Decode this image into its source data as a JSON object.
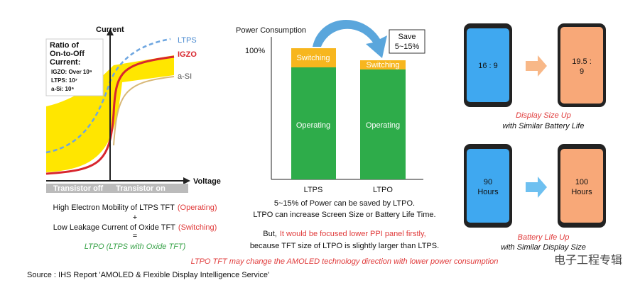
{
  "left_panel": {
    "y_axis_label": "Current",
    "x_axis_label": "Voltage",
    "curve_labels": {
      "ltps": "LTPS",
      "igzo": "IGZO",
      "asi": "a-SI"
    },
    "ratio_box": {
      "title": [
        "Ratio of",
        "On-to-Off",
        "Current:"
      ],
      "rows": [
        "IGZO: Over 10⁹",
        "LTPS: 10⁷",
        "a-Si: 10⁶"
      ]
    },
    "regions": [
      "Transistor off",
      "Transistor on"
    ],
    "caption": [
      [
        "High Electron Mobility of LTPS TFT",
        "(Operating)"
      ],
      "+",
      [
        "Low Leakage Current of Oxide TFT",
        "(Switching)"
      ],
      "=",
      "LTPO (LTPS with Oxide TFT)"
    ]
  },
  "middle_panel": {
    "y_axis_label": "Power Consumption",
    "y_tick": "100%",
    "bars": [
      {
        "name": "LTPS",
        "segments": [
          "Switching",
          "Operating"
        ]
      },
      {
        "name": "LTPO",
        "segments": [
          "Switching",
          "Operating"
        ]
      }
    ],
    "callout": [
      "Save",
      "5~15%"
    ],
    "caption": [
      "5~15% of Power can be saved by LTPO.",
      "LTPO can increase Screen Size or Battery Life Time.",
      [
        "But,",
        "It would be focused lower PPI panel firstly,"
      ],
      "because TFT size of LTPO is slightly larger than LTPS."
    ]
  },
  "right_panel": {
    "rows": [
      {
        "before": [
          "16 : 9"
        ],
        "after": [
          "19.5 :",
          "9"
        ],
        "caption": [
          "Display Size Up",
          "with Similar Battery Life"
        ]
      },
      {
        "before": [
          "90",
          "Hours"
        ],
        "after": [
          "100",
          "Hours"
        ],
        "caption": [
          "Battery Life Up",
          "with Similar Display Size"
        ]
      }
    ]
  },
  "conclusion": "LTPO TFT may change the AMOLED technology direction with lower power consumption",
  "source": "Source : IHS Report 'AMOLED & Flexible Display Intelligence Service'",
  "watermark": "电子工程专辑"
}
